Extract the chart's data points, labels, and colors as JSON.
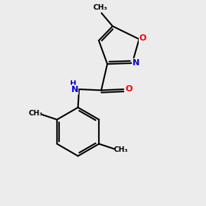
{
  "background_color": "#ececec",
  "bond_color": "#000000",
  "N_color": "#0000cd",
  "O_color": "#ff0000",
  "figsize": [
    3.0,
    3.0
  ],
  "dpi": 100,
  "xlim": [
    0,
    10
  ],
  "ylim": [
    0,
    10
  ]
}
